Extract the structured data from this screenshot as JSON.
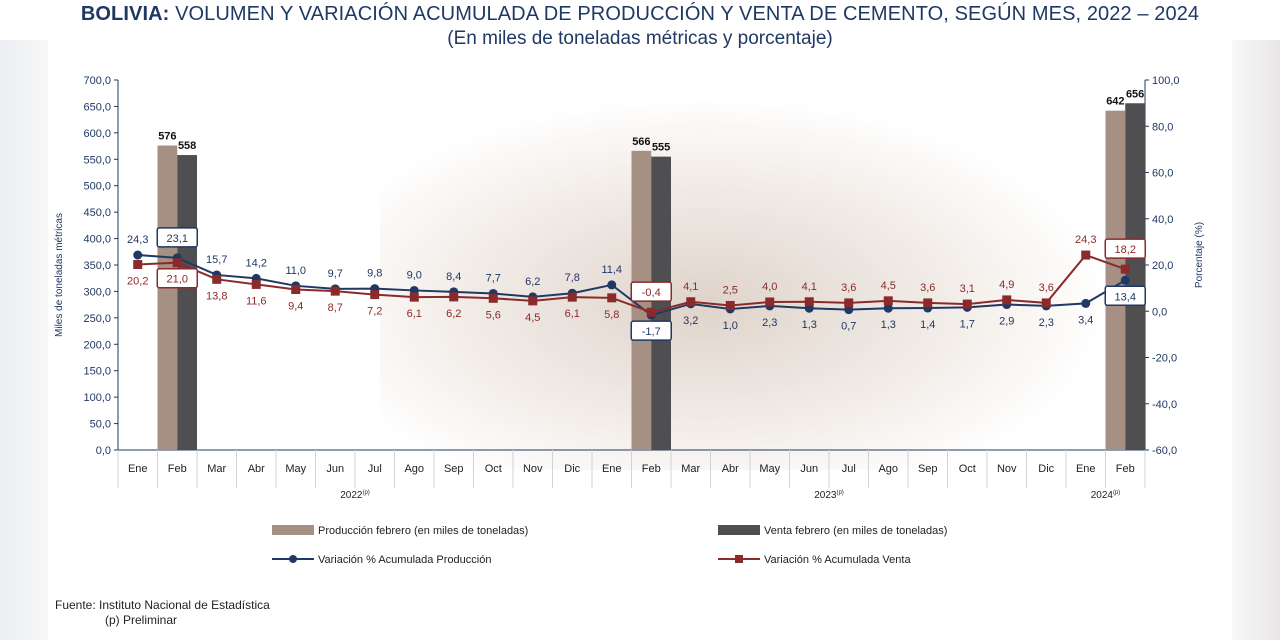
{
  "title": {
    "bold": "BOLIVIA:",
    "rest": " VOLUMEN Y VARIACIÓN ACUMULADA DE PRODUCCIÓN Y VENTA DE CEMENTO, SEGÚN MES, 2022 – 2024"
  },
  "subtitle": "(En miles de toneladas métricas y porcentaje)",
  "footer": {
    "source": "Fuente: Instituto Nacional de Estadística",
    "note": "(p) Preliminar"
  },
  "colors": {
    "produccion_bar": "#a59083",
    "venta_bar": "#4f4f52",
    "produccion_line": "#1f3864",
    "venta_line": "#8b2a2a"
  },
  "chart_data": {
    "type": "bar+line",
    "title": "BOLIVIA: VOLUMEN Y VARIACIÓN ACUMULADA DE PRODUCCIÓN Y VENTA DE CEMENTO, SEGÚN MES, 2022 – 2024",
    "subtitle": "(En miles de toneladas métricas y porcentaje)",
    "categories": [
      "Ene",
      "Feb",
      "Mar",
      "Abr",
      "May",
      "Jun",
      "Jul",
      "Ago",
      "Sep",
      "Oct",
      "Nov",
      "Dic",
      "Ene",
      "Feb",
      "Mar",
      "Abr",
      "May",
      "Jun",
      "Jul",
      "Ago",
      "Sep",
      "Oct",
      "Nov",
      "Dic",
      "Ene",
      "Feb"
    ],
    "year_groups": [
      {
        "label": "2022(p)",
        "start": 0,
        "end": 11
      },
      {
        "label": "2023(p)",
        "start": 12,
        "end": 23
      },
      {
        "label": "2024(p)",
        "start": 24,
        "end": 25
      }
    ],
    "ylabel_left": "Miles de toneladas métricas",
    "ylabel_right": "Porcentaje (%)",
    "ylim_left": [
      0,
      700
    ],
    "ylim_right": [
      -60,
      100
    ],
    "yticks_left": [
      "0,0",
      "50,0",
      "100,0",
      "150,0",
      "200,0",
      "250,0",
      "300,0",
      "350,0",
      "400,0",
      "450,0",
      "500,0",
      "550,0",
      "600,0",
      "650,0",
      "700,0"
    ],
    "yticks_right": [
      "-60,0",
      "-40,0",
      "-20,0",
      "0,0",
      "20,0",
      "40,0",
      "60,0",
      "80,0",
      "100,0"
    ],
    "bars": [
      {
        "name": "Producción febrero (en miles de toneladas)",
        "points": [
          {
            "index": 1,
            "value": 576,
            "label": "576"
          },
          {
            "index": 13,
            "value": 566,
            "label": "566"
          },
          {
            "index": 25,
            "value": 642,
            "label": "642"
          }
        ]
      },
      {
        "name": "Venta febrero (en miles de toneladas)",
        "points": [
          {
            "index": 1,
            "value": 558,
            "label": "558"
          },
          {
            "index": 13,
            "value": 555,
            "label": "555"
          },
          {
            "index": 25,
            "value": 656,
            "label": "656"
          }
        ]
      }
    ],
    "series": [
      {
        "name": "Variación % Acumulada Producción",
        "values": [
          24.3,
          23.1,
          15.7,
          14.2,
          11.0,
          9.7,
          9.8,
          9.0,
          8.4,
          7.7,
          6.2,
          7.8,
          11.4,
          -1.7,
          3.2,
          1.0,
          2.3,
          1.3,
          0.7,
          1.3,
          1.4,
          1.7,
          2.9,
          2.3,
          3.4,
          13.4
        ],
        "labels": [
          "24,3",
          "23,1",
          "15,7",
          "14,2",
          "11,0",
          "9,7",
          "9,8",
          "9,0",
          "8,4",
          "7,7",
          "6,2",
          "7,8",
          "11,4",
          "-1,7",
          "3,2",
          "1,0",
          "2,3",
          "1,3",
          "0,7",
          "1,3",
          "1,4",
          "1,7",
          "2,9",
          "2,3",
          "3,4",
          "13,4"
        ]
      },
      {
        "name": "Variación % Acumulada Venta",
        "values": [
          20.2,
          21.0,
          13.8,
          11.6,
          9.4,
          8.7,
          7.2,
          6.1,
          6.2,
          5.6,
          4.5,
          6.1,
          5.8,
          -0.4,
          4.1,
          2.5,
          4.0,
          4.1,
          3.6,
          4.5,
          3.6,
          3.1,
          4.9,
          3.6,
          24.3,
          18.2
        ],
        "labels": [
          "20,2",
          "21,0",
          "13,8",
          "11,6",
          "9,4",
          "8,7",
          "7,2",
          "6,1",
          "6,2",
          "5,6",
          "4,5",
          "6,1",
          "5,8",
          "-0,4",
          "4,1",
          "2,5",
          "4,0",
          "4,1",
          "3,6",
          "4,5",
          "3,6",
          "3,1",
          "4,9",
          "3,6",
          "24,3",
          "18,2"
        ]
      }
    ],
    "legend": [
      "Producción febrero (en miles de toneladas)",
      "Venta febrero (en miles de toneladas)",
      "Variación % Acumulada Producción",
      "Variación % Acumulada Venta"
    ],
    "legend_position": "bottom"
  }
}
